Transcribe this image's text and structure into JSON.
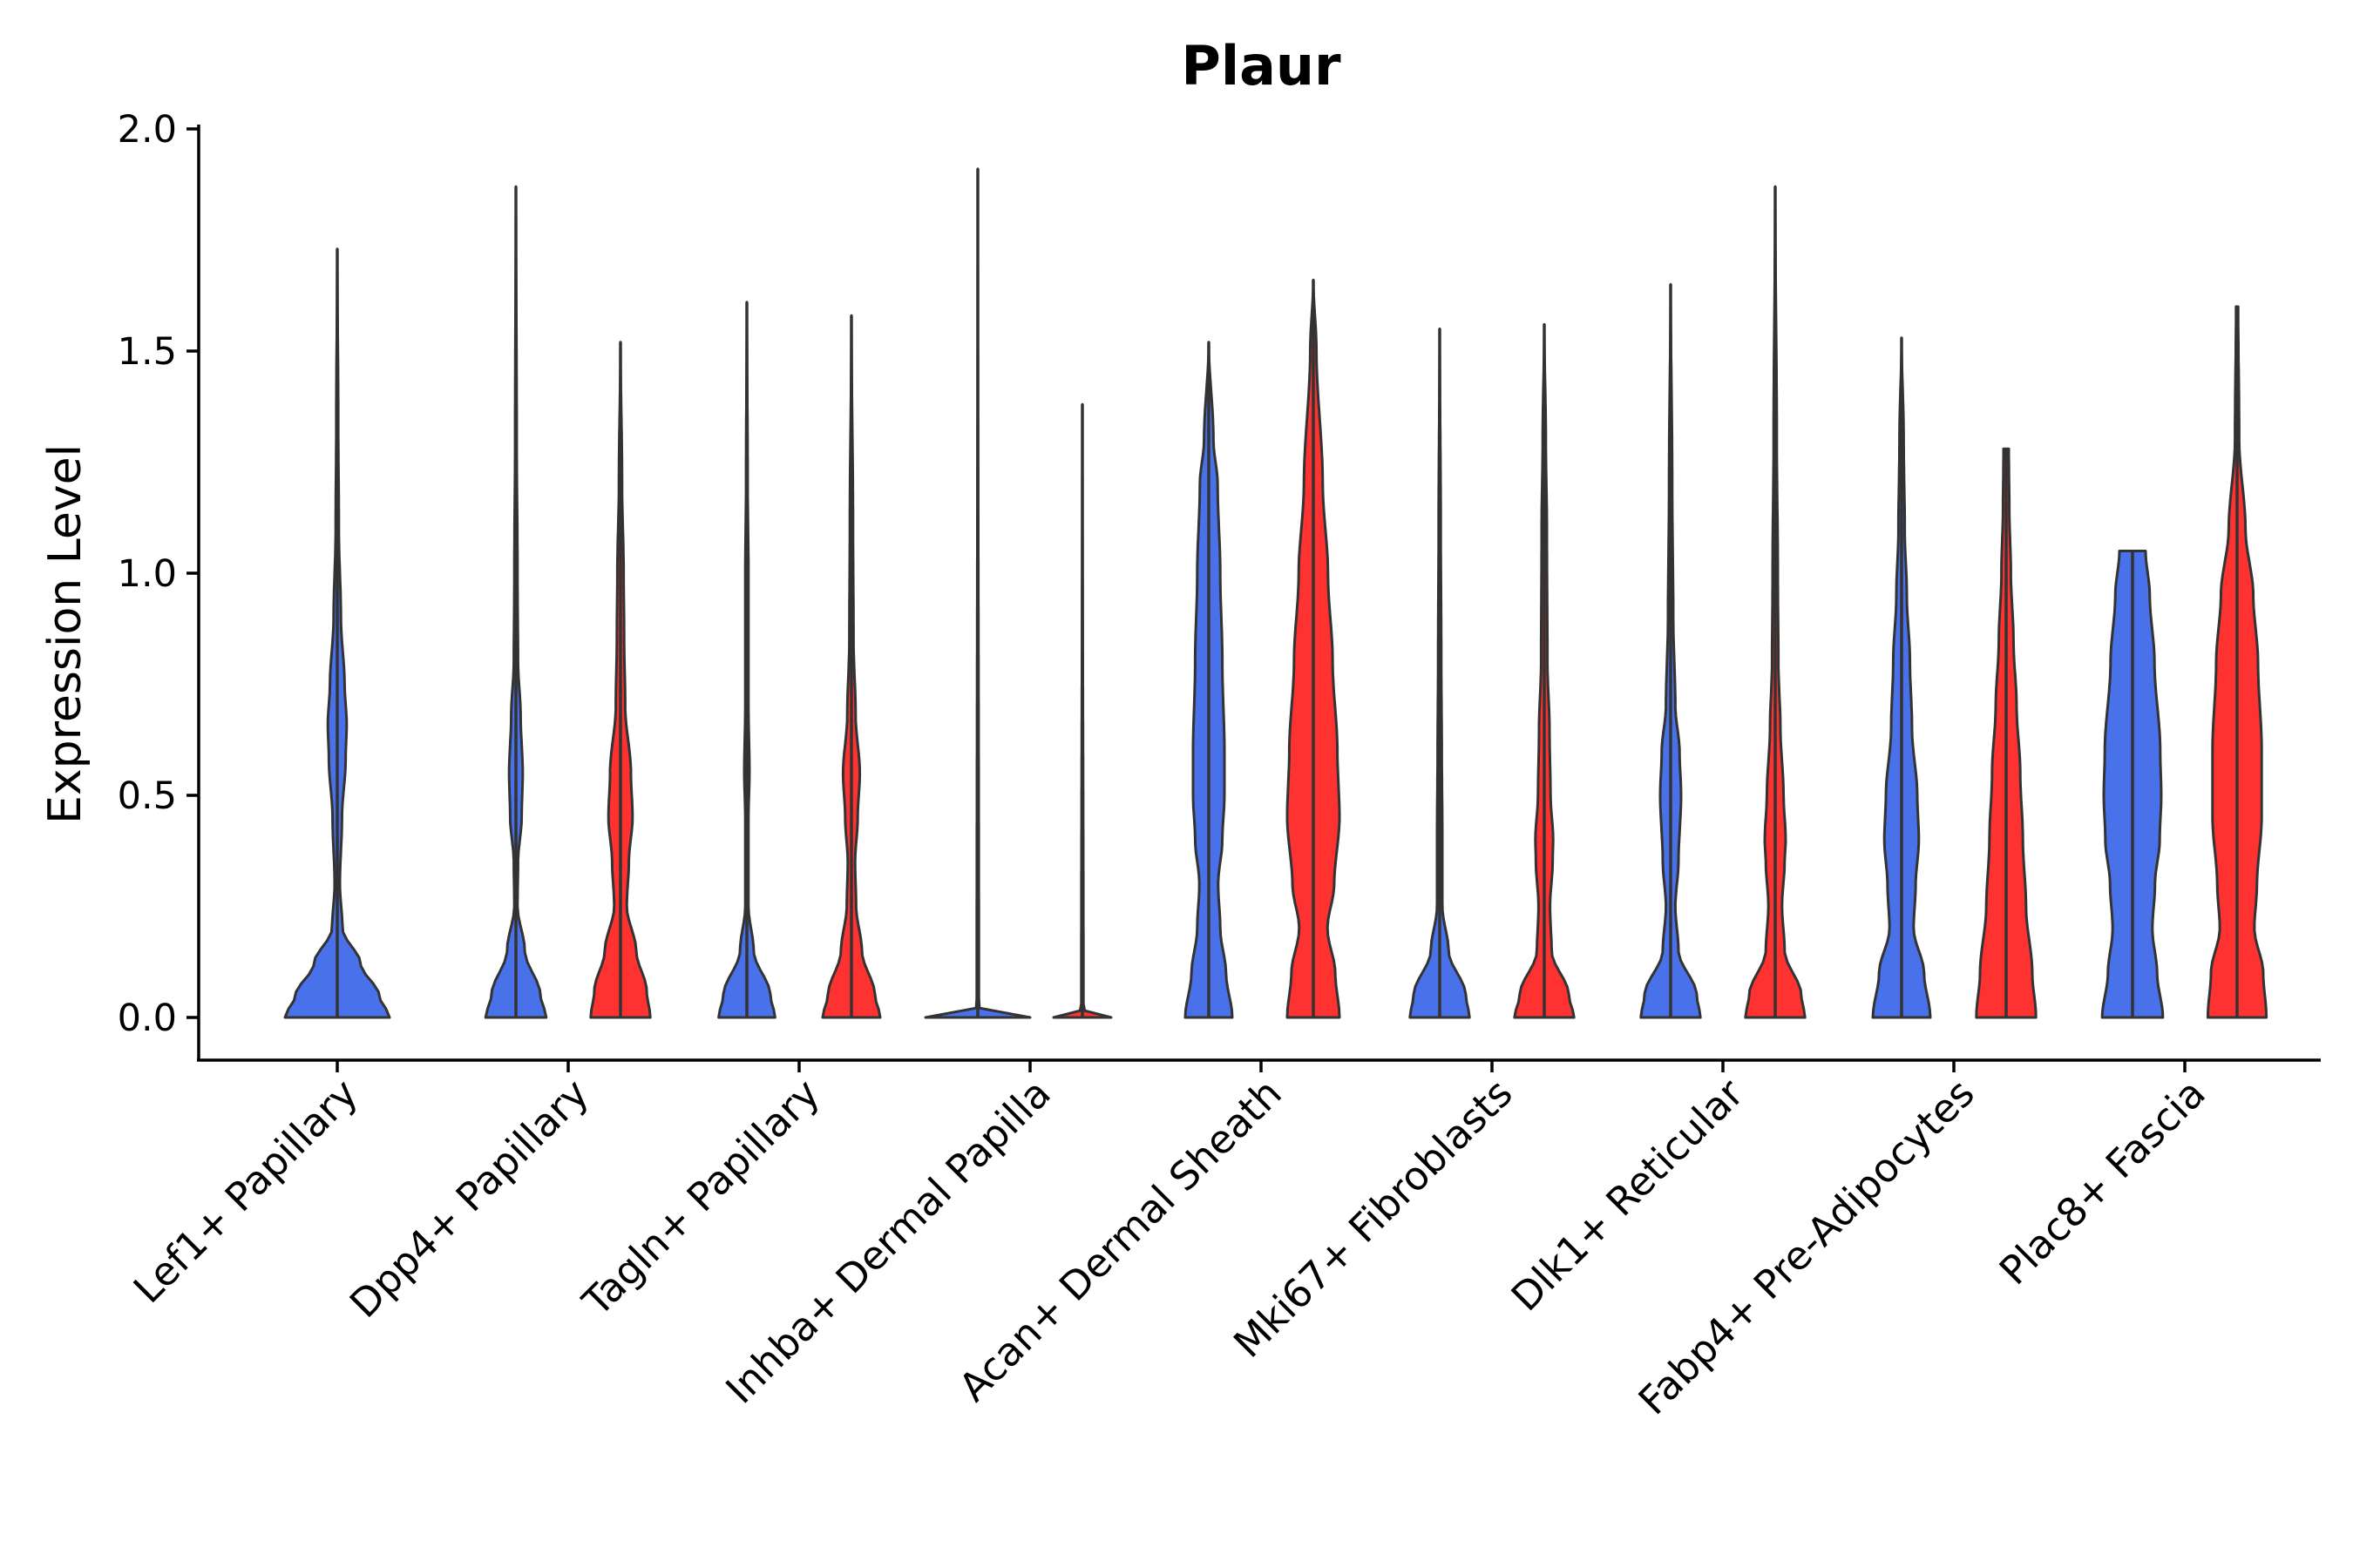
{
  "chart_data": {
    "type": "violin",
    "title": "Plaur",
    "xlabel": "",
    "ylabel": "Expression Level",
    "ylim": [
      -0.1,
      2.0
    ],
    "yticks": [
      0.0,
      0.5,
      1.0,
      1.5,
      2.0
    ],
    "ytick_labels": [
      "0.0",
      "0.5",
      "1.0",
      "1.5",
      "2.0"
    ],
    "categories": [
      "Lef1+ Papillary",
      "Dpp4+ Papillary",
      "Tagln+ Papillary",
      "Inhba+ Dermal Papilla",
      "Acan+ Dermal Sheath",
      "Mki67+ Fibroblasts",
      "Dlk1+ Reticular",
      "Fabp4+ Pre-Adipocytes",
      "Plac8+ Fascia"
    ],
    "colors": {
      "group1": "#4871EA",
      "group2": "#FF3232"
    },
    "series": [
      {
        "name": "group1",
        "color": "#4871EA",
        "max": [
          1.73,
          1.87,
          1.61,
          1.91,
          1.52,
          1.55,
          1.65,
          1.53,
          1.05
        ]
      },
      {
        "name": "group2",
        "color": "#FF3232",
        "max": [
          null,
          1.52,
          1.58,
          1.38,
          1.66,
          1.56,
          1.87,
          1.28,
          1.6
        ]
      }
    ]
  }
}
